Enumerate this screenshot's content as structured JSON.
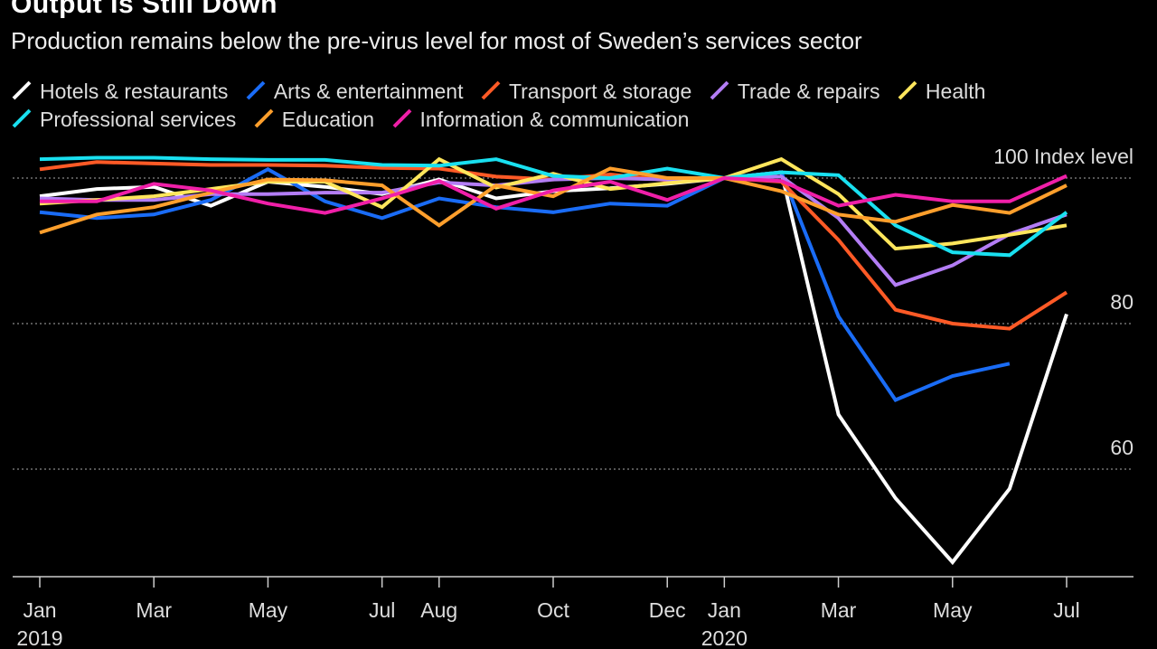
{
  "title": "Output Is Still Down",
  "subtitle": "Production remains below the pre-virus level for most of Sweden’s services sector",
  "chart_data": {
    "type": "line",
    "x": [
      "2019-01",
      "2019-02",
      "2019-03",
      "2019-04",
      "2019-05",
      "2019-06",
      "2019-07",
      "2019-08",
      "2019-09",
      "2019-10",
      "2019-11",
      "2019-12",
      "2020-01",
      "2020-02",
      "2020-03",
      "2020-04",
      "2020-05",
      "2020-06",
      "2020-07"
    ],
    "x_tick_labels": [
      {
        "x": "2019-01",
        "label": "Jan",
        "year": "2019"
      },
      {
        "x": "2019-03",
        "label": "Mar"
      },
      {
        "x": "2019-05",
        "label": "May"
      },
      {
        "x": "2019-07",
        "label": "Jul"
      },
      {
        "x": "2019-08",
        "label": "Aug"
      },
      {
        "x": "2019-10",
        "label": "Oct"
      },
      {
        "x": "2019-12",
        "label": "Dec"
      },
      {
        "x": "2020-01",
        "label": "Jan",
        "year": "2020"
      },
      {
        "x": "2020-03",
        "label": "Mar"
      },
      {
        "x": "2020-05",
        "label": "May"
      },
      {
        "x": "2020-07",
        "label": "Jul"
      }
    ],
    "y_ticks": [
      {
        "value": 100,
        "label": "100",
        "unit": "Index level"
      },
      {
        "value": 80,
        "label": "80"
      },
      {
        "value": 60,
        "label": "60"
      }
    ],
    "ylim": [
      48,
      104
    ],
    "grid": "horizontal-dotted",
    "legend_position": "top",
    "series": [
      {
        "name": "Hotels & restaurants",
        "color": "#ffffff",
        "values": [
          97.5,
          98.5,
          98.8,
          96.2,
          99.5,
          98.8,
          97.8,
          99.8,
          97.2,
          98.2,
          98.6,
          99.2,
          100,
          100.8,
          67.5,
          56,
          47.2,
          57.3,
          81.3
        ]
      },
      {
        "name": "Arts & entertainment",
        "color": "#1a6cf6",
        "values": [
          95.3,
          94.5,
          95,
          97,
          101.2,
          96.8,
          94.5,
          97.2,
          96,
          95.3,
          96.5,
          96.2,
          100,
          100.8,
          81,
          69.5,
          72.8,
          74.5,
          null
        ]
      },
      {
        "name": "Transport & storage",
        "color": "#ff5a26",
        "values": [
          101.2,
          102.2,
          102,
          101.8,
          101.8,
          101.7,
          101.4,
          101.3,
          100.2,
          99.8,
          100.5,
          99.7,
          100,
          99.5,
          91.5,
          81.9,
          80,
          79.3,
          84.3
        ]
      },
      {
        "name": "Trade & repairs",
        "color": "#b37df5",
        "values": [
          97.2,
          97,
          97,
          97.8,
          97.8,
          98,
          98,
          99.4,
          99,
          99.8,
          100,
          99.8,
          100,
          100.2,
          94.5,
          85.3,
          88,
          92.3,
          95
        ]
      },
      {
        "name": "Health",
        "color": "#ffe65c",
        "values": [
          96.5,
          97,
          97.5,
          98.5,
          99.5,
          99.5,
          96,
          102.6,
          98.7,
          100.6,
          98.5,
          99.3,
          100,
          102.6,
          97.8,
          90.3,
          91,
          92.2,
          93.5
        ]
      },
      {
        "name": "Professional services",
        "color": "#19e0f0",
        "values": [
          102.6,
          102.8,
          102.8,
          102.6,
          102.5,
          102.5,
          101.8,
          101.7,
          102.6,
          100.3,
          100,
          101.3,
          100,
          100.8,
          100.4,
          93.5,
          89.8,
          89.4,
          95.3
        ]
      },
      {
        "name": "Education",
        "color": "#ff9f2c",
        "values": [
          92.5,
          95,
          96,
          98,
          99.8,
          99.7,
          99,
          93.5,
          99,
          97.5,
          101.3,
          100,
          100,
          98.2,
          95,
          94,
          96.3,
          95.2,
          99
        ]
      },
      {
        "name": "Information & communication",
        "color": "#f01fa8",
        "values": [
          96.8,
          96.8,
          99.2,
          98.3,
          96.5,
          95.2,
          97.2,
          99.6,
          95.8,
          98.3,
          99.5,
          97,
          100,
          99.6,
          96.2,
          97.7,
          96.8,
          96.8,
          100.3
        ]
      }
    ]
  }
}
